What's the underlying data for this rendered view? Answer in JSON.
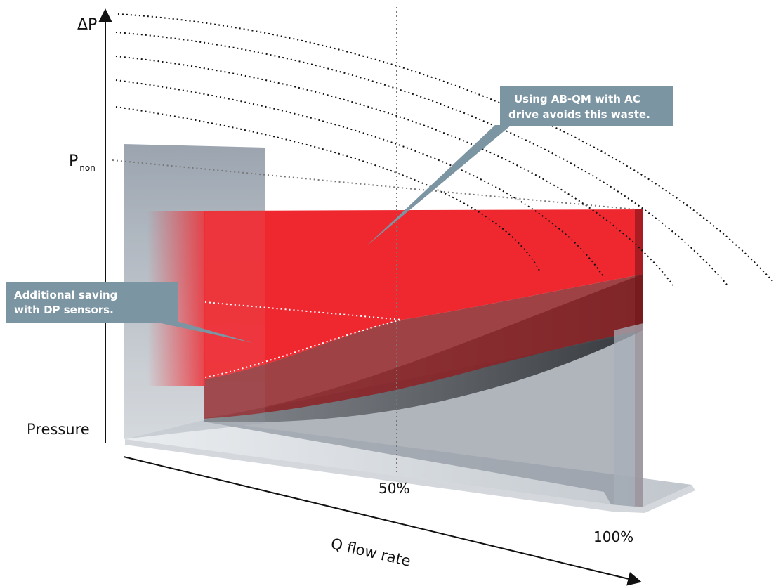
{
  "axis": {
    "y_label": "ΔP",
    "p_label": "P",
    "p_subscript": "non",
    "pressure_label": "Pressure",
    "x_label": "Q flow rate",
    "tick_50": "50%",
    "tick_100": "100%"
  },
  "callouts": {
    "ac_drive": {
      "line1": "Using AB-QM with AC",
      "line2": "drive avoids this waste."
    },
    "dp_sensors": {
      "line1": "Additional saving",
      "line2": "with DP sensors."
    }
  },
  "colors": {
    "waste_red": "#ee1c24",
    "callout_box": "#7b95a3",
    "dark_volume": "#3f4246",
    "grey_volume": "#8e969f",
    "floor": "#c9cfd4"
  }
}
